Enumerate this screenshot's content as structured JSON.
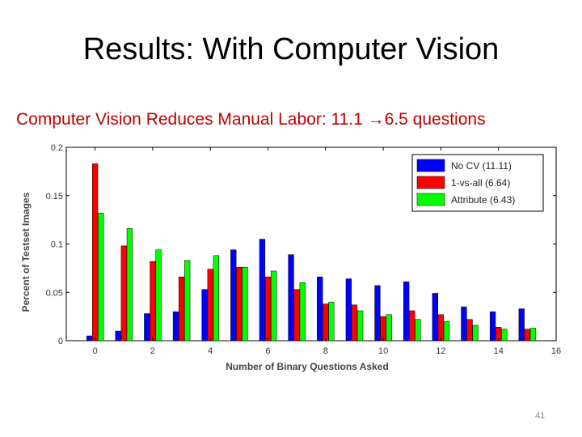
{
  "slide": {
    "title": "Results: With Computer Vision",
    "subtitle_prefix": "Computer Vision Reduces Manual Labor: 11.1 ",
    "subtitle_arrow": "→",
    "subtitle_suffix": "6.5 questions",
    "page_number": "41"
  },
  "colors": {
    "subtitle": "#c00000",
    "series": [
      "#0000ff",
      "#ff0000",
      "#00ff00"
    ]
  },
  "chart_data": {
    "type": "bar",
    "xlabel": "Number of Binary Questions Asked",
    "ylabel": "Percent of Testset Images",
    "xlim": [
      -1,
      16
    ],
    "ylim": [
      0,
      0.2
    ],
    "xticks": [
      0,
      2,
      4,
      6,
      8,
      10,
      12,
      14,
      16
    ],
    "yticks": [
      0,
      0.05,
      0.1,
      0.15,
      0.2
    ],
    "ytick_labels": [
      "0",
      "0.05",
      "0.1",
      "0.15",
      "0.2"
    ],
    "grid": false,
    "legend_position": "top-right",
    "categories": [
      0,
      1,
      2,
      3,
      4,
      5,
      6,
      7,
      8,
      9,
      10,
      11,
      12,
      13,
      14,
      15
    ],
    "series": [
      {
        "name": "No CV (11.11)",
        "color": "#0000ff",
        "values": [
          0.005,
          0.01,
          0.028,
          0.03,
          0.053,
          0.094,
          0.105,
          0.089,
          0.066,
          0.064,
          0.057,
          0.061,
          0.049,
          0.035,
          0.03,
          0.033
        ]
      },
      {
        "name": "1-vs-all (6.64)",
        "color": "#ff0000",
        "values": [
          0.183,
          0.098,
          0.082,
          0.066,
          0.074,
          0.076,
          0.066,
          0.053,
          0.038,
          0.037,
          0.025,
          0.031,
          0.027,
          0.022,
          0.014,
          0.012
        ]
      },
      {
        "name": "Attribute (6.43)",
        "color": "#00ff00",
        "values": [
          0.132,
          0.116,
          0.094,
          0.083,
          0.088,
          0.076,
          0.072,
          0.06,
          0.04,
          0.031,
          0.027,
          0.022,
          0.02,
          0.016,
          0.012,
          0.013
        ]
      }
    ]
  }
}
